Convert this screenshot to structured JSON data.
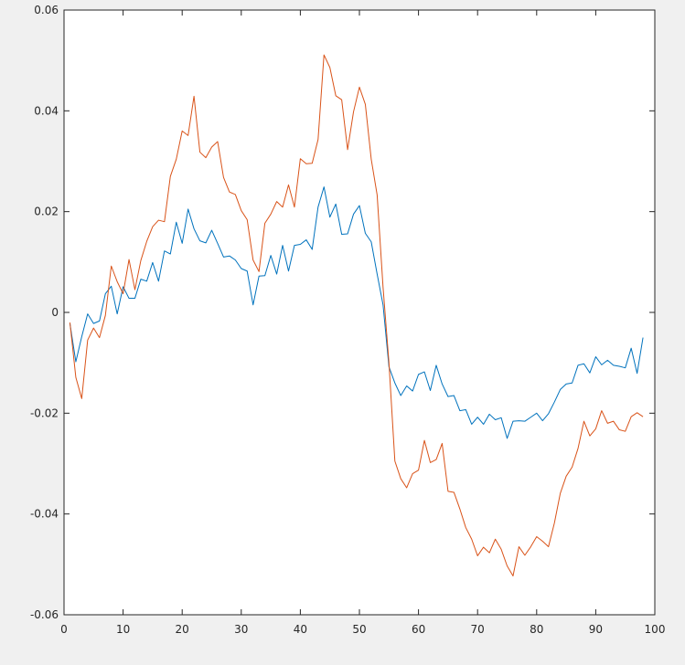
{
  "chart_data": {
    "type": "line",
    "title": "",
    "xlabel": "",
    "ylabel": "",
    "xlim": [
      0,
      100
    ],
    "ylim": [
      -0.06,
      0.06
    ],
    "x_ticks": [
      0,
      10,
      20,
      30,
      40,
      50,
      60,
      70,
      80,
      90,
      100
    ],
    "x_tick_labels": [
      "0",
      "10",
      "20",
      "30",
      "40",
      "50",
      "60",
      "70",
      "80",
      "90",
      "100"
    ],
    "y_ticks": [
      -0.06,
      -0.04,
      -0.02,
      0,
      0.02,
      0.04,
      0.06
    ],
    "y_tick_labels": [
      "-0.06",
      "-0.04",
      "-0.02",
      "0",
      "0.02",
      "0.04",
      "0.06"
    ],
    "grid": false,
    "legend": "none",
    "series": [
      {
        "color": "#0072BD",
        "x": [
          1,
          2,
          3,
          4,
          5,
          6,
          7,
          8,
          9,
          10,
          11,
          12,
          13,
          14,
          15,
          16,
          17,
          18,
          19,
          20,
          21,
          22,
          23,
          24,
          25,
          26,
          27,
          28,
          29,
          30,
          31,
          32,
          33,
          34,
          35,
          36,
          37,
          38,
          39,
          40,
          41,
          42,
          43,
          44,
          45,
          46,
          47,
          48,
          49,
          50,
          51,
          52,
          53,
          54,
          55,
          56,
          57,
          58,
          59,
          60,
          61,
          62,
          63,
          64,
          65,
          66,
          67,
          68,
          69,
          70,
          71,
          72,
          73,
          74,
          75,
          76,
          77,
          78,
          79,
          80,
          81,
          82,
          83,
          84,
          85,
          86,
          87,
          88,
          89,
          90,
          91,
          92,
          93,
          94,
          95,
          96,
          97,
          98
        ],
        "values": [
          -0.0022,
          -0.0098,
          -0.0048,
          -0.0003,
          -0.0022,
          -0.0017,
          0.0037,
          0.0052,
          -0.0003,
          0.0051,
          0.0028,
          0.0028,
          0.0066,
          0.0062,
          0.0099,
          0.0062,
          0.0122,
          0.0116,
          0.0179,
          0.0137,
          0.0205,
          0.0166,
          0.0142,
          0.0138,
          0.0163,
          0.0137,
          0.011,
          0.0112,
          0.0104,
          0.0087,
          0.0082,
          0.0015,
          0.0072,
          0.0073,
          0.0113,
          0.0076,
          0.0133,
          0.0082,
          0.0133,
          0.0135,
          0.0144,
          0.0125,
          0.0209,
          0.0249,
          0.0189,
          0.0215,
          0.0155,
          0.0156,
          0.0195,
          0.0212,
          0.0157,
          0.014,
          0.0076,
          0.0015,
          -0.0108,
          -0.014,
          -0.0165,
          -0.0146,
          -0.0156,
          -0.0123,
          -0.0118,
          -0.0155,
          -0.0105,
          -0.0142,
          -0.0167,
          -0.0165,
          -0.0195,
          -0.0193,
          -0.0222,
          -0.0208,
          -0.0222,
          -0.0202,
          -0.0213,
          -0.0209,
          -0.025,
          -0.0216,
          -0.0215,
          -0.0216,
          -0.0208,
          -0.02,
          -0.0215,
          -0.0201,
          -0.0178,
          -0.0153,
          -0.0142,
          -0.014,
          -0.0105,
          -0.0102,
          -0.012,
          -0.0088,
          -0.0104,
          -0.0095,
          -0.0105,
          -0.0107,
          -0.011,
          -0.0071,
          -0.0121,
          -0.005
        ]
      },
      {
        "color": "#D95319",
        "x": [
          1,
          2,
          3,
          4,
          5,
          6,
          7,
          8,
          9,
          10,
          11,
          12,
          13,
          14,
          15,
          16,
          17,
          18,
          19,
          20,
          21,
          22,
          23,
          24,
          25,
          26,
          27,
          28,
          29,
          30,
          31,
          32,
          33,
          34,
          35,
          36,
          37,
          38,
          39,
          40,
          41,
          42,
          43,
          44,
          45,
          46,
          47,
          48,
          49,
          50,
          51,
          52,
          53,
          54,
          55,
          56,
          57,
          58,
          59,
          60,
          61,
          62,
          63,
          64,
          65,
          66,
          67,
          68,
          69,
          70,
          71,
          72,
          73,
          74,
          75,
          76,
          77,
          78,
          79,
          80,
          81,
          82,
          83,
          84,
          85,
          86,
          87,
          88,
          89,
          90,
          91,
          92,
          93,
          94,
          95,
          96,
          97,
          98
        ],
        "values": [
          -0.002,
          -0.0129,
          -0.0171,
          -0.0055,
          -0.0031,
          -0.005,
          -0.0006,
          0.0092,
          0.0061,
          0.0037,
          0.0105,
          0.0045,
          0.0103,
          0.0141,
          0.017,
          0.0183,
          0.018,
          0.027,
          0.0304,
          0.036,
          0.0351,
          0.0429,
          0.0318,
          0.0307,
          0.0328,
          0.0339,
          0.0268,
          0.0239,
          0.0234,
          0.0202,
          0.0184,
          0.0104,
          0.0081,
          0.0177,
          0.0195,
          0.022,
          0.0209,
          0.0253,
          0.0209,
          0.0305,
          0.0295,
          0.0296,
          0.0343,
          0.0511,
          0.0486,
          0.043,
          0.0422,
          0.0323,
          0.0398,
          0.0447,
          0.0413,
          0.0304,
          0.0233,
          0.005,
          -0.01,
          -0.0295,
          -0.033,
          -0.0348,
          -0.032,
          -0.0313,
          -0.0254,
          -0.0298,
          -0.0292,
          -0.026,
          -0.0355,
          -0.0357,
          -0.039,
          -0.0427,
          -0.045,
          -0.0483,
          -0.0466,
          -0.0477,
          -0.045,
          -0.047,
          -0.0503,
          -0.0523,
          -0.0465,
          -0.0482,
          -0.0465,
          -0.0445,
          -0.0454,
          -0.0465,
          -0.0418,
          -0.0359,
          -0.0325,
          -0.0307,
          -0.027,
          -0.0216,
          -0.0245,
          -0.0231,
          -0.0195,
          -0.022,
          -0.0216,
          -0.0233,
          -0.0236,
          -0.0207,
          -0.0199,
          -0.0207
        ]
      }
    ]
  }
}
